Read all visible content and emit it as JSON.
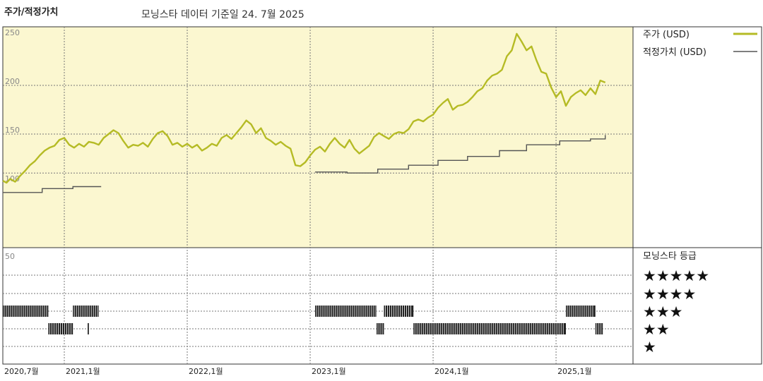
{
  "header": {
    "title": "주가/적정가치",
    "subtitle": "모닝스타 데이터 기준일 24. 7월 2025"
  },
  "colors": {
    "price": "#b5bb25",
    "fair_value": "#555555",
    "panel_bg": "#fbf7d0"
  },
  "chart_data": [
    {
      "type": "line",
      "title": "주가/적정가치",
      "ylim": [
        50,
        260
      ],
      "yticks": [
        250,
        200,
        150,
        100
      ],
      "dashed_y": [
        200,
        150,
        110
      ],
      "x_range": [
        2020.5,
        2025.58
      ],
      "x_ticks": [
        {
          "x": 2020.5,
          "label": "2020,7월"
        },
        {
          "x": 2021.0,
          "label": "2021,1월"
        },
        {
          "x": 2022.0,
          "label": "2022,1월"
        },
        {
          "x": 2023.0,
          "label": "2023,1월"
        },
        {
          "x": 2024.0,
          "label": "2024,1월"
        },
        {
          "x": 2025.0,
          "label": "2025,1월"
        }
      ],
      "series": [
        {
          "name": "주가 (USD)",
          "points": [
            [
              2020.5,
              102
            ],
            [
              2020.53,
              100
            ],
            [
              2020.56,
              104
            ],
            [
              2020.6,
              101
            ],
            [
              2020.64,
              107
            ],
            [
              2020.68,
              112
            ],
            [
              2020.72,
              118
            ],
            [
              2020.76,
              122
            ],
            [
              2020.8,
              128
            ],
            [
              2020.84,
              133
            ],
            [
              2020.88,
              136
            ],
            [
              2020.92,
              138
            ],
            [
              2020.96,
              144
            ],
            [
              2021.0,
              146
            ],
            [
              2021.04,
              139
            ],
            [
              2021.08,
              136
            ],
            [
              2021.12,
              140
            ],
            [
              2021.16,
              137
            ],
            [
              2021.2,
              142
            ],
            [
              2021.24,
              141
            ],
            [
              2021.28,
              139
            ],
            [
              2021.32,
              146
            ],
            [
              2021.36,
              150
            ],
            [
              2021.4,
              154
            ],
            [
              2021.44,
              151
            ],
            [
              2021.48,
              143
            ],
            [
              2021.52,
              136
            ],
            [
              2021.56,
              139
            ],
            [
              2021.6,
              138
            ],
            [
              2021.64,
              141
            ],
            [
              2021.68,
              137
            ],
            [
              2021.72,
              145
            ],
            [
              2021.76,
              151
            ],
            [
              2021.8,
              153
            ],
            [
              2021.84,
              148
            ],
            [
              2021.88,
              139
            ],
            [
              2021.92,
              141
            ],
            [
              2021.96,
              137
            ],
            [
              2022.0,
              140
            ],
            [
              2022.04,
              136
            ],
            [
              2022.08,
              139
            ],
            [
              2022.12,
              133
            ],
            [
              2022.16,
              136
            ],
            [
              2022.2,
              140
            ],
            [
              2022.24,
              138
            ],
            [
              2022.28,
              146
            ],
            [
              2022.32,
              149
            ],
            [
              2022.36,
              145
            ],
            [
              2022.4,
              151
            ],
            [
              2022.44,
              157
            ],
            [
              2022.48,
              164
            ],
            [
              2022.52,
              160
            ],
            [
              2022.56,
              151
            ],
            [
              2022.6,
              156
            ],
            [
              2022.64,
              146
            ],
            [
              2022.68,
              143
            ],
            [
              2022.72,
              139
            ],
            [
              2022.76,
              142
            ],
            [
              2022.8,
              138
            ],
            [
              2022.84,
              135
            ],
            [
              2022.88,
              118
            ],
            [
              2022.92,
              117
            ],
            [
              2022.96,
              121
            ],
            [
              2023.0,
              128
            ],
            [
              2023.04,
              134
            ],
            [
              2023.08,
              137
            ],
            [
              2023.12,
              132
            ],
            [
              2023.16,
              140
            ],
            [
              2023.2,
              146
            ],
            [
              2023.24,
              140
            ],
            [
              2023.28,
              136
            ],
            [
              2023.32,
              144
            ],
            [
              2023.36,
              135
            ],
            [
              2023.4,
              130
            ],
            [
              2023.44,
              134
            ],
            [
              2023.48,
              138
            ],
            [
              2023.52,
              147
            ],
            [
              2023.56,
              151
            ],
            [
              2023.6,
              148
            ],
            [
              2023.64,
              145
            ],
            [
              2023.68,
              150
            ],
            [
              2023.72,
              152
            ],
            [
              2023.76,
              151
            ],
            [
              2023.8,
              155
            ],
            [
              2023.84,
              163
            ],
            [
              2023.88,
              165
            ],
            [
              2023.92,
              163
            ],
            [
              2023.96,
              167
            ],
            [
              2024.0,
              170
            ],
            [
              2024.04,
              177
            ],
            [
              2024.08,
              182
            ],
            [
              2024.12,
              186
            ],
            [
              2024.16,
              175
            ],
            [
              2024.2,
              179
            ],
            [
              2024.24,
              180
            ],
            [
              2024.28,
              183
            ],
            [
              2024.32,
              188
            ],
            [
              2024.36,
              194
            ],
            [
              2024.4,
              197
            ],
            [
              2024.44,
              205
            ],
            [
              2024.48,
              210
            ],
            [
              2024.52,
              212
            ],
            [
              2024.56,
              216
            ],
            [
              2024.6,
              230
            ],
            [
              2024.64,
              236
            ],
            [
              2024.68,
              253
            ],
            [
              2024.72,
              245
            ],
            [
              2024.76,
              236
            ],
            [
              2024.8,
              240
            ],
            [
              2024.84,
              226
            ],
            [
              2024.88,
              214
            ],
            [
              2024.92,
              212
            ],
            [
              2024.96,
              198
            ],
            [
              2025.0,
              188
            ],
            [
              2025.04,
              194
            ],
            [
              2025.08,
              179
            ],
            [
              2025.12,
              188
            ],
            [
              2025.16,
              192
            ],
            [
              2025.2,
              195
            ],
            [
              2025.24,
              190
            ],
            [
              2025.28,
              197
            ],
            [
              2025.32,
              191
            ],
            [
              2025.36,
              205
            ],
            [
              2025.4,
              203
            ]
          ]
        },
        {
          "name": "적정가치 (USD)",
          "segments": [
            [
              [
                2020.5,
                90
              ],
              [
                2020.82,
                90
              ],
              [
                2020.82,
                94
              ],
              [
                2021.07,
                94
              ],
              [
                2021.07,
                96
              ],
              [
                2021.3,
                96
              ]
            ],
            [
              [
                2023.04,
                111
              ],
              [
                2023.3,
                111
              ],
              [
                2023.3,
                110
              ],
              [
                2023.55,
                110
              ],
              [
                2023.55,
                114
              ],
              [
                2023.8,
                114
              ],
              [
                2023.8,
                118
              ],
              [
                2024.04,
                118
              ],
              [
                2024.04,
                123
              ],
              [
                2024.28,
                123
              ],
              [
                2024.28,
                127
              ],
              [
                2024.54,
                127
              ],
              [
                2024.54,
                133
              ],
              [
                2024.76,
                133
              ],
              [
                2024.76,
                139
              ],
              [
                2025.03,
                139
              ],
              [
                2025.03,
                143
              ],
              [
                2025.28,
                143
              ],
              [
                2025.28,
                145
              ],
              [
                2025.4,
                145
              ],
              [
                2025.4,
                149
              ]
            ]
          ]
        }
      ]
    },
    {
      "type": "timeline",
      "title": "모닝스타 등급",
      "levels": [
        "★★★★★",
        "★★★★",
        "★★★",
        "★★",
        "★"
      ],
      "top_label": "50",
      "periods": [
        {
          "level": 3,
          "start": 2020.5,
          "end": 2020.87
        },
        {
          "level": 4,
          "start": 2020.87,
          "end": 2021.07
        },
        {
          "level": 3,
          "start": 2021.07,
          "end": 2021.28
        },
        {
          "level": 4,
          "start": 2021.19,
          "end": 2021.2
        },
        {
          "level": 3,
          "start": 2023.04,
          "end": 2023.54
        },
        {
          "level": 4,
          "start": 2023.54,
          "end": 2023.6
        },
        {
          "level": 3,
          "start": 2023.6,
          "end": 2023.84
        },
        {
          "level": 4,
          "start": 2023.84,
          "end": 2025.08
        },
        {
          "level": 3,
          "start": 2025.08,
          "end": 2025.32
        },
        {
          "level": 4,
          "start": 2025.32,
          "end": 2025.38
        }
      ]
    }
  ]
}
